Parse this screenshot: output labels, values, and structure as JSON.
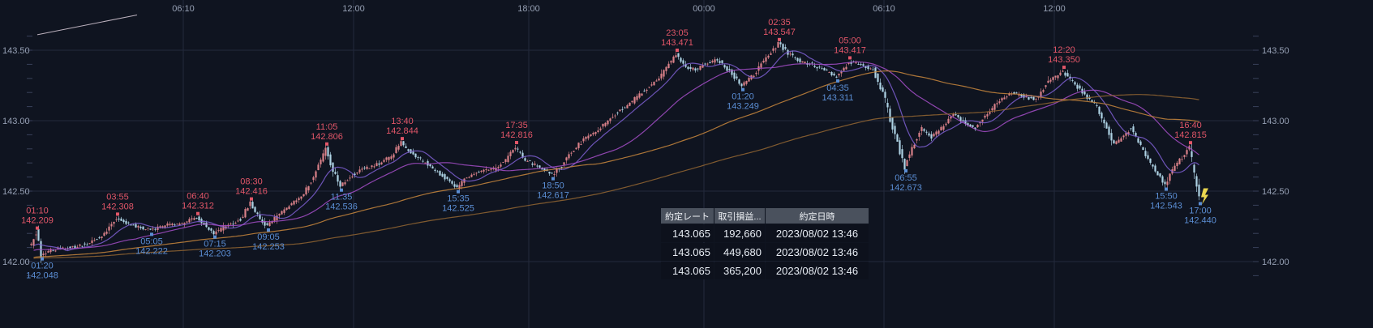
{
  "colors": {
    "background": "#0f1420",
    "grid": "#232a3c",
    "tick": "#39415a",
    "axis_text": "#96a0b4",
    "candle_up": "#d98089",
    "candle_down": "#aed3e4",
    "high_label": "#e25668",
    "low_label": "#5b8ed4",
    "trendline": "#cfc2cf",
    "current_marker": "#ead64f",
    "table_header_bg": "#4a515d",
    "table_row_bg": "#0d111c"
  },
  "chart_data": {
    "type": "candlestick",
    "ylim": [
      141.95,
      143.7
    ],
    "y_ticks": [
      143.5,
      143.0,
      142.5,
      142.0
    ],
    "time_ticks": [
      {
        "label": "06:10",
        "t": 370
      },
      {
        "label": "12:00",
        "t": 720
      },
      {
        "label": "18:00",
        "t": 1080
      },
      {
        "label": "00:00",
        "t": 1440
      },
      {
        "label": "06:10",
        "t": 1810
      },
      {
        "label": "12:00",
        "t": 2160
      }
    ],
    "price_path": [
      [
        -540,
        141.95
      ],
      [
        -300,
        142.0
      ],
      [
        -120,
        142.05
      ],
      [
        0,
        142.08
      ],
      [
        60,
        142.13
      ],
      [
        70,
        142.209
      ],
      [
        80,
        142.048
      ],
      [
        100,
        142.08
      ],
      [
        140,
        142.1
      ],
      [
        180,
        142.13
      ],
      [
        210,
        142.2
      ],
      [
        235,
        142.308
      ],
      [
        265,
        142.26
      ],
      [
        305,
        142.222
      ],
      [
        340,
        142.26
      ],
      [
        370,
        142.27
      ],
      [
        400,
        142.312
      ],
      [
        420,
        142.25
      ],
      [
        435,
        142.203
      ],
      [
        465,
        142.26
      ],
      [
        490,
        142.3
      ],
      [
        510,
        142.416
      ],
      [
        530,
        142.3
      ],
      [
        545,
        142.253
      ],
      [
        565,
        142.32
      ],
      [
        590,
        142.4
      ],
      [
        615,
        142.46
      ],
      [
        640,
        142.6
      ],
      [
        665,
        142.806
      ],
      [
        680,
        142.65
      ],
      [
        695,
        142.536
      ],
      [
        715,
        142.6
      ],
      [
        740,
        142.66
      ],
      [
        770,
        142.69
      ],
      [
        800,
        142.75
      ],
      [
        820,
        142.844
      ],
      [
        845,
        142.76
      ],
      [
        870,
        142.7
      ],
      [
        900,
        142.62
      ],
      [
        935,
        142.525
      ],
      [
        955,
        142.6
      ],
      [
        980,
        142.64
      ],
      [
        1010,
        142.66
      ],
      [
        1035,
        142.72
      ],
      [
        1055,
        142.816
      ],
      [
        1075,
        142.72
      ],
      [
        1100,
        142.68
      ],
      [
        1130,
        142.617
      ],
      [
        1150,
        142.68
      ],
      [
        1175,
        142.8
      ],
      [
        1200,
        142.88
      ],
      [
        1230,
        142.95
      ],
      [
        1260,
        143.05
      ],
      [
        1290,
        143.12
      ],
      [
        1320,
        143.22
      ],
      [
        1350,
        143.3
      ],
      [
        1385,
        143.471
      ],
      [
        1405,
        143.38
      ],
      [
        1425,
        143.36
      ],
      [
        1440,
        143.4
      ],
      [
        1470,
        143.43
      ],
      [
        1495,
        143.35
      ],
      [
        1520,
        143.249
      ],
      [
        1545,
        143.33
      ],
      [
        1570,
        143.45
      ],
      [
        1595,
        143.547
      ],
      [
        1615,
        143.48
      ],
      [
        1640,
        143.42
      ],
      [
        1665,
        143.4
      ],
      [
        1690,
        143.36
      ],
      [
        1715,
        143.311
      ],
      [
        1740,
        143.417
      ],
      [
        1765,
        143.4
      ],
      [
        1790,
        143.36
      ],
      [
        1810,
        143.2
      ],
      [
        1830,
        142.95
      ],
      [
        1855,
        142.673
      ],
      [
        1875,
        142.85
      ],
      [
        1890,
        142.95
      ],
      [
        1910,
        142.88
      ],
      [
        1930,
        142.95
      ],
      [
        1955,
        143.05
      ],
      [
        1980,
        142.98
      ],
      [
        2000,
        142.95
      ],
      [
        2025,
        143.05
      ],
      [
        2050,
        143.15
      ],
      [
        2075,
        143.2
      ],
      [
        2100,
        143.17
      ],
      [
        2125,
        143.15
      ],
      [
        2150,
        143.28
      ],
      [
        2180,
        143.35
      ],
      [
        2200,
        143.28
      ],
      [
        2225,
        143.18
      ],
      [
        2250,
        143.1
      ],
      [
        2270,
        142.95
      ],
      [
        2285,
        142.82
      ],
      [
        2300,
        142.88
      ],
      [
        2320,
        142.95
      ],
      [
        2335,
        142.85
      ],
      [
        2350,
        142.75
      ],
      [
        2370,
        142.65
      ],
      [
        2390,
        142.543
      ],
      [
        2405,
        142.65
      ],
      [
        2420,
        142.72
      ],
      [
        2440,
        142.815
      ],
      [
        2450,
        142.6
      ],
      [
        2460,
        142.44
      ]
    ],
    "swing_points": [
      {
        "time": "01:10",
        "price": "142.209",
        "kind": "high",
        "t": 70
      },
      {
        "time": "01:20",
        "price": "142.048",
        "kind": "low",
        "t": 80
      },
      {
        "time": "03:55",
        "price": "142.308",
        "kind": "high",
        "t": 235
      },
      {
        "time": "05:05",
        "price": "142.222",
        "kind": "low",
        "t": 305
      },
      {
        "time": "06:40",
        "price": "142.312",
        "kind": "high",
        "t": 400
      },
      {
        "time": "07:15",
        "price": "142.203",
        "kind": "low",
        "t": 435
      },
      {
        "time": "08:30",
        "price": "142.416",
        "kind": "high",
        "t": 510
      },
      {
        "time": "09:05",
        "price": "142.253",
        "kind": "low",
        "t": 545
      },
      {
        "time": "11:05",
        "price": "142.806",
        "kind": "high",
        "t": 665
      },
      {
        "time": "11:35",
        "price": "142.536",
        "kind": "low",
        "t": 695
      },
      {
        "time": "13:40",
        "price": "142.844",
        "kind": "high",
        "t": 820
      },
      {
        "time": "15:35",
        "price": "142.525",
        "kind": "low",
        "t": 935
      },
      {
        "time": "17:35",
        "price": "142.816",
        "kind": "high",
        "t": 1055
      },
      {
        "time": "18:50",
        "price": "142.617",
        "kind": "low",
        "t": 1130
      },
      {
        "time": "23:05",
        "price": "143.471",
        "kind": "high",
        "t": 1385
      },
      {
        "time": "01:20",
        "price": "143.249",
        "kind": "low",
        "t": 1520
      },
      {
        "time": "02:35",
        "price": "143.547",
        "kind": "high",
        "t": 1595
      },
      {
        "time": "04:35",
        "price": "143.311",
        "kind": "low",
        "t": 1715
      },
      {
        "time": "05:00",
        "price": "143.417",
        "kind": "high",
        "t": 1740
      },
      {
        "time": "06:55",
        "price": "142.673",
        "kind": "low",
        "t": 1855
      },
      {
        "time": "12:20",
        "price": "143.350",
        "kind": "high",
        "t": 2180
      },
      {
        "time": "15:50",
        "price": "142.543",
        "kind": "low",
        "t": 2390
      },
      {
        "time": "16:40",
        "price": "142.815",
        "kind": "high",
        "t": 2440
      },
      {
        "time": "17:00",
        "price": "142.440",
        "kind": "low",
        "t": 2460
      }
    ],
    "moving_averages": [
      {
        "name": "ma-fast",
        "window": 12,
        "color": "#7e5fd2"
      },
      {
        "name": "ma-mid",
        "window": 40,
        "color": "#a44ec8"
      },
      {
        "name": "ma-slow",
        "window": 110,
        "color": "#c9873d"
      },
      {
        "name": "ma-long",
        "window": 230,
        "color": "#946632"
      }
    ],
    "trendline": {
      "t1": 70,
      "p1": 143.61,
      "t2": 275,
      "p2": 143.75
    },
    "last": {
      "time": "17:00",
      "price": "142.440"
    }
  },
  "table": {
    "headers": [
      "約定レート",
      "取引損益...",
      "約定日時"
    ],
    "rows": [
      [
        "143.065",
        "192,660",
        "2023/08/02 13:46"
      ],
      [
        "143.065",
        "449,680",
        "2023/08/02 13:46"
      ],
      [
        "143.065",
        "365,200",
        "2023/08/02 13:46"
      ]
    ]
  }
}
